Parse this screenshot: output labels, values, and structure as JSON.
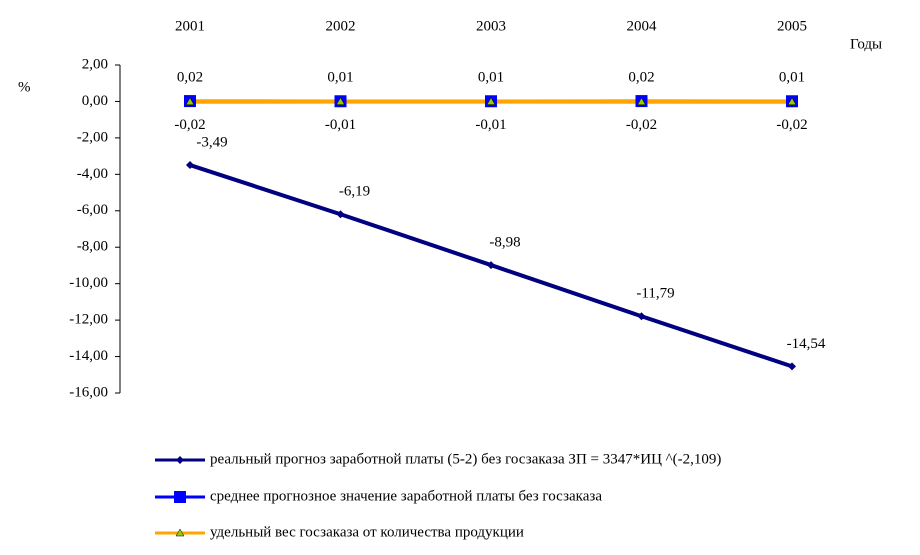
{
  "chart_data": {
    "type": "line",
    "x_label": "Годы",
    "y_label": "%",
    "categories": [
      "2001",
      "2002",
      "2003",
      "2004",
      "2005"
    ],
    "ylim": [
      -16,
      2
    ],
    "yticks": [
      {
        "value": 2,
        "label": "2,00"
      },
      {
        "value": 0,
        "label": "0,00"
      },
      {
        "value": -2,
        "label": "-2,00"
      },
      {
        "value": -4,
        "label": "-4,00"
      },
      {
        "value": -6,
        "label": "-6,00"
      },
      {
        "value": -8,
        "label": "-8,00"
      },
      {
        "value": -10,
        "label": "-10,00"
      },
      {
        "value": -12,
        "label": "-12,00"
      },
      {
        "value": -14,
        "label": "-14,00"
      },
      {
        "value": -16,
        "label": "-16,00"
      }
    ],
    "series": [
      {
        "name": "реальный прогноз заработной платы (5-2) без госзаказа ЗП = 3347*ИЦ ^(-2,109)",
        "color": "#000080",
        "marker": "diamond",
        "marker_color": "#000080",
        "values": [
          -3.49,
          -6.19,
          -8.98,
          -11.79,
          -14.54
        ],
        "value_labels": [
          "-3,49",
          "-6,19",
          "-8,98",
          "-11,79",
          "-14,54"
        ]
      },
      {
        "name": "среднее прогнозное значение заработной платы без госзаказа",
        "color": "#0000ff",
        "marker": "square",
        "marker_color": "#0000ff",
        "values": [
          0.02,
          0.01,
          0.01,
          0.02,
          0.01
        ],
        "value_labels": [
          "0,02",
          "0,01",
          "0,01",
          "0,02",
          "0,01"
        ]
      },
      {
        "name": "удельный вес госзаказа от количества продукции",
        "color": "#ffa500",
        "marker": "triangle",
        "marker_color": "#99cc00",
        "values": [
          -0.02,
          -0.01,
          -0.01,
          -0.02,
          -0.02
        ],
        "value_labels": [
          "-0,02",
          "-0,01",
          "-0,01",
          "-0,02",
          "-0,02"
        ]
      }
    ]
  }
}
